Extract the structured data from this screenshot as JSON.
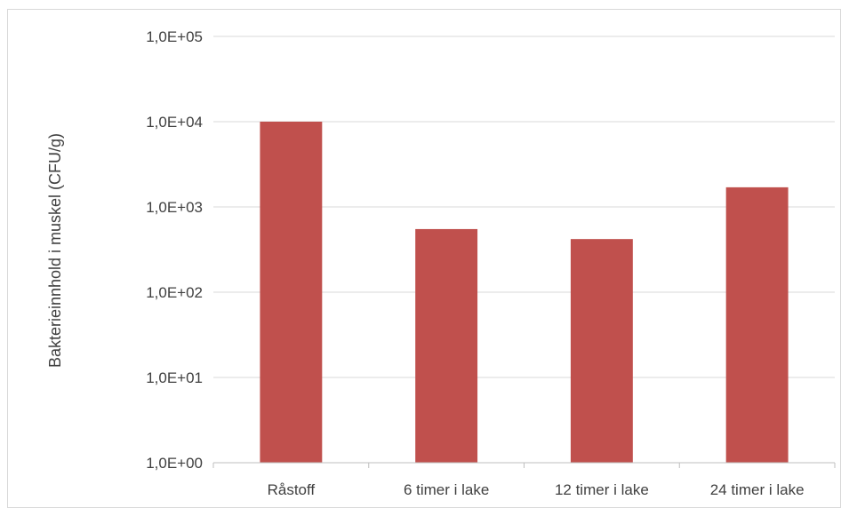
{
  "chart_data": {
    "type": "bar",
    "title": "",
    "xlabel": "",
    "ylabel": "Bakterieinnhold i muskel (CFU/g)",
    "y_scale": "log",
    "ylim": [
      1,
      100000
    ],
    "y_ticks": [
      1,
      10,
      100,
      1000,
      10000,
      100000
    ],
    "y_tick_labels": [
      "1,0E+00",
      "1,0E+01",
      "1,0E+02",
      "1,0E+03",
      "1,0E+04",
      "1,0E+05"
    ],
    "categories": [
      "Råstoff",
      "6 timer i lake",
      "12 timer i lake",
      "24 timer i lake"
    ],
    "values": [
      10000,
      550,
      420,
      1700
    ],
    "grid": true,
    "legend": "none",
    "colors": {
      "bar": "#c0504d",
      "grid": "#d9d9d9",
      "axis": "#bfbfbf",
      "text": "#404040"
    }
  }
}
